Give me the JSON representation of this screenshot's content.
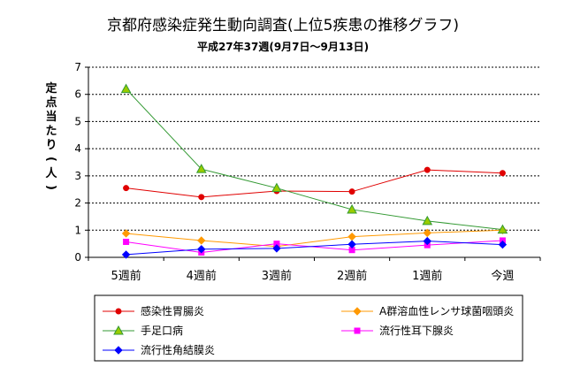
{
  "chart_data": {
    "type": "line",
    "title": "京都府感染症発生動向調査(上位5疾患の推移グラフ)",
    "subtitle": "平成27年37週(9月7日～9月13日)",
    "ylabel": "定点当たり(人)",
    "xlabel": "",
    "categories": [
      "5週前",
      "4週前",
      "3週前",
      "2週前",
      "1週前",
      "今週"
    ],
    "ylim": [
      0,
      7
    ],
    "yticks": [
      "0",
      "1",
      "2",
      "3",
      "4",
      "5",
      "6",
      "7"
    ],
    "grid": true,
    "legend_position": "bottom",
    "series": [
      {
        "name": "感染性胃腸炎",
        "color": "#e00000",
        "marker": "circle",
        "values": [
          2.55,
          2.22,
          2.44,
          2.42,
          3.22,
          3.1
        ]
      },
      {
        "name": "A群溶血性レンサ球菌咽頭炎",
        "color": "#ff9900",
        "marker": "diamond",
        "values": [
          0.88,
          0.62,
          0.4,
          0.76,
          0.9,
          1.0
        ]
      },
      {
        "name": "手足口病",
        "color": "#339933",
        "marker": "triangle",
        "markerFill": "#99cc00",
        "values": [
          6.2,
          3.25,
          2.55,
          1.76,
          1.34,
          1.02
        ]
      },
      {
        "name": "流行性耳下腺炎",
        "color": "#ff00ff",
        "marker": "square",
        "values": [
          0.57,
          0.18,
          0.5,
          0.27,
          0.45,
          0.62
        ]
      },
      {
        "name": "流行性角結膜炎",
        "color": "#0000ff",
        "marker": "diamond",
        "values": [
          0.1,
          0.3,
          0.33,
          0.48,
          0.6,
          0.47
        ]
      }
    ]
  }
}
